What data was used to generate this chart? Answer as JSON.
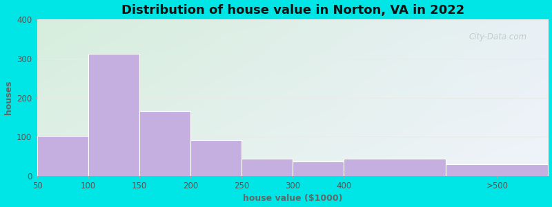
{
  "title": "Distribution of house value in Norton, VA in 2022",
  "xlabel": "house value ($1000)",
  "ylabel": "houses",
  "bar_labels": [
    "50",
    "100",
    "150",
    "200",
    "250",
    "300",
    "400",
    ">500"
  ],
  "bar_heights": [
    103,
    312,
    165,
    92,
    44,
    37,
    44,
    30
  ],
  "bar_color": "#c5aee0",
  "bar_edge_color": "#ffffff",
  "ylim": [
    0,
    400
  ],
  "yticks": [
    0,
    100,
    200,
    300,
    400
  ],
  "background_outer": "#00e5e5",
  "bg_top_left": "#d6eedc",
  "bg_top_right": "#e8f0f5",
  "bg_bottom_left": "#e0f0e8",
  "bg_bottom_right": "#f0f4fa",
  "grid_color": "#e0e8e0",
  "title_fontsize": 13,
  "axis_label_fontsize": 9,
  "tick_fontsize": 8.5,
  "watermark_text": "City-Data.com",
  "watermark_color": "#b8c8c0",
  "bar_widths": [
    1,
    1,
    1,
    1,
    1,
    1,
    2,
    2
  ],
  "bar_lefts": [
    0,
    1,
    2,
    3,
    4,
    5,
    6,
    8
  ]
}
